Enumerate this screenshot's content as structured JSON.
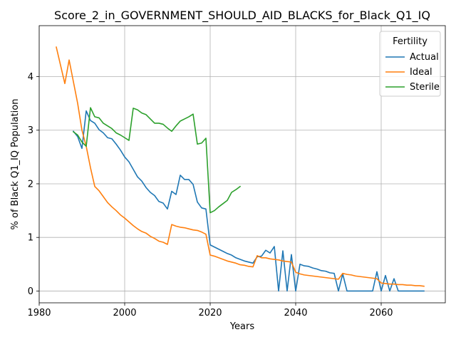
{
  "chart_data": {
    "type": "line",
    "title": "Score_2_in_GOVERNMENT_SHOULD_AID_BLACKS_for_Black_Q1_IQ",
    "xlabel": "Years",
    "ylabel": "% of Black Q1_IQ Population",
    "xlim": [
      1980,
      2075
    ],
    "ylim": [
      -0.22,
      4.95
    ],
    "xticks": [
      1980,
      2000,
      2020,
      2040,
      2060
    ],
    "yticks": [
      0,
      1,
      2,
      3,
      4
    ],
    "grid": true,
    "legend": {
      "title": "Fertility",
      "placement": "top-right"
    },
    "series": [
      {
        "name": "Actual",
        "color": "#1f77b4",
        "x": [
          1988,
          1989,
          1990,
          1991,
          1992,
          1993,
          1994,
          1995,
          1996,
          1997,
          1998,
          1999,
          2000,
          2001,
          2002,
          2003,
          2004,
          2005,
          2006,
          2007,
          2008,
          2009,
          2010,
          2011,
          2012,
          2013,
          2014,
          2015,
          2016,
          2017,
          2018,
          2019,
          2020,
          2021,
          2022,
          2023,
          2024,
          2025,
          2026,
          2027,
          2028,
          2029,
          2030,
          2031,
          2032,
          2033,
          2034,
          2035,
          2036,
          2037,
          2038,
          2039,
          2040,
          2041,
          2042,
          2043,
          2044,
          2045,
          2046,
          2047,
          2048,
          2049,
          2050,
          2051,
          2052,
          2053,
          2054,
          2055,
          2056,
          2057,
          2058,
          2059,
          2060,
          2061,
          2062,
          2063,
          2064,
          2065,
          2066,
          2067,
          2068,
          2069,
          2070
        ],
        "y": [
          2.98,
          2.88,
          2.66,
          3.36,
          3.18,
          3.13,
          3.01,
          2.95,
          2.86,
          2.84,
          2.74,
          2.63,
          2.5,
          2.41,
          2.27,
          2.13,
          2.05,
          1.93,
          1.84,
          1.78,
          1.67,
          1.64,
          1.53,
          1.86,
          1.8,
          2.16,
          2.08,
          2.08,
          1.99,
          1.66,
          1.55,
          1.53,
          0.86,
          0.82,
          0.78,
          0.74,
          0.7,
          0.67,
          0.62,
          0.59,
          0.56,
          0.54,
          0.52,
          0.64,
          0.65,
          0.76,
          0.71,
          0.83,
          0.0,
          0.75,
          0.0,
          0.68,
          0.0,
          0.5,
          0.47,
          0.46,
          0.43,
          0.41,
          0.38,
          0.37,
          0.34,
          0.33,
          0.0,
          0.32,
          0.0,
          0.0,
          0.0,
          0.0,
          0.0,
          0.0,
          0.0,
          0.36,
          0.0,
          0.29,
          0.0,
          0.23,
          0.0,
          0.0,
          0.0,
          0.0,
          0.0,
          0.0,
          0.0
        ]
      },
      {
        "name": "Ideal",
        "color": "#ff7f0e",
        "x": [
          1984,
          1986,
          1987,
          1989,
          1990,
          1991,
          1992,
          1993,
          1994,
          1995,
          1996,
          1997,
          1998,
          1999,
          2000,
          2001,
          2002,
          2003,
          2004,
          2005,
          2006,
          2007,
          2008,
          2009,
          2010,
          2011,
          2012,
          2013,
          2014,
          2015,
          2016,
          2017,
          2018,
          2019,
          2020,
          2021,
          2022,
          2023,
          2024,
          2025,
          2026,
          2027,
          2028,
          2029,
          2030,
          2031,
          2032,
          2033,
          2034,
          2035,
          2036,
          2037,
          2038,
          2039,
          2040,
          2041,
          2042,
          2043,
          2044,
          2045,
          2046,
          2047,
          2048,
          2049,
          2050,
          2051,
          2052,
          2053,
          2054,
          2055,
          2056,
          2057,
          2058,
          2059,
          2060,
          2061,
          2062,
          2063,
          2064,
          2065,
          2066,
          2067,
          2068,
          2069,
          2070
        ],
        "y": [
          4.55,
          3.87,
          4.31,
          3.5,
          3.0,
          2.7,
          2.3,
          1.95,
          1.87,
          1.76,
          1.65,
          1.57,
          1.5,
          1.42,
          1.36,
          1.29,
          1.22,
          1.16,
          1.11,
          1.08,
          1.02,
          0.98,
          0.93,
          0.91,
          0.87,
          1.24,
          1.21,
          1.19,
          1.18,
          1.16,
          1.14,
          1.13,
          1.1,
          1.06,
          0.67,
          0.65,
          0.62,
          0.59,
          0.56,
          0.54,
          0.52,
          0.49,
          0.48,
          0.46,
          0.45,
          0.66,
          0.62,
          0.62,
          0.6,
          0.59,
          0.58,
          0.56,
          0.55,
          0.54,
          0.35,
          0.32,
          0.3,
          0.29,
          0.28,
          0.27,
          0.26,
          0.25,
          0.24,
          0.23,
          0.22,
          0.33,
          0.31,
          0.3,
          0.28,
          0.27,
          0.26,
          0.25,
          0.24,
          0.23,
          0.15,
          0.14,
          0.13,
          0.13,
          0.12,
          0.12,
          0.11,
          0.11,
          0.1,
          0.1,
          0.09
        ]
      },
      {
        "name": "Sterile",
        "color": "#2ca02c",
        "x": [
          1988,
          1989,
          1990,
          1991,
          1992,
          1993,
          1994,
          1995,
          1996,
          1997,
          1998,
          1999,
          2000,
          2001,
          2002,
          2003,
          2004,
          2005,
          2006,
          2007,
          2008,
          2009,
          2010,
          2011,
          2012,
          2013,
          2014,
          2015,
          2016,
          2017,
          2018,
          2019,
          2020,
          2021,
          2022,
          2023,
          2024,
          2025,
          2026,
          2027
        ],
        "y": [
          2.97,
          2.91,
          2.78,
          2.7,
          3.42,
          3.25,
          3.23,
          3.13,
          3.08,
          3.03,
          2.95,
          2.91,
          2.86,
          2.81,
          3.41,
          3.38,
          3.32,
          3.29,
          3.21,
          3.13,
          3.13,
          3.11,
          3.04,
          2.98,
          3.08,
          3.17,
          3.21,
          3.25,
          3.3,
          2.74,
          2.76,
          2.85,
          1.46,
          1.5,
          1.57,
          1.63,
          1.69,
          1.84,
          1.89,
          1.95
        ]
      }
    ]
  }
}
